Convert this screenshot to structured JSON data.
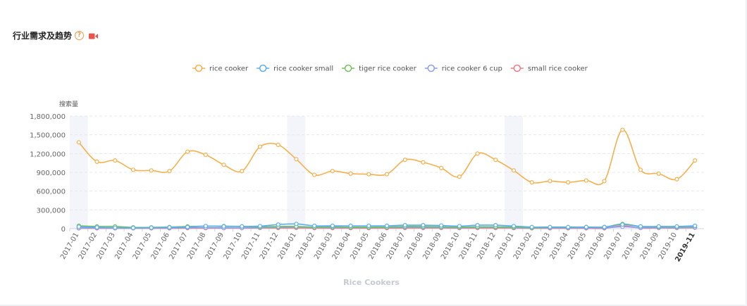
{
  "header": {
    "title": "行业需求及趋势",
    "help_icon": "question-circle-icon",
    "video_icon": "video-camera-icon",
    "help_color": "#f2994a",
    "video_color": "#e8534a"
  },
  "chart_data": {
    "type": "line",
    "title": "",
    "ylabel": "搜索量",
    "xlabel": "Rice Cookers",
    "ylim": [
      0,
      1800000
    ],
    "yticks": [
      "0",
      "300,000",
      "600,000",
      "900,000",
      "1,200,000",
      "1,500,000",
      "1,800,000"
    ],
    "ytick_values": [
      0,
      300000,
      600000,
      900000,
      1200000,
      1500000,
      1800000
    ],
    "grid": "horizontal dashed",
    "legend_position": "top-center",
    "highlighted_period_indices": [
      0,
      12,
      24
    ],
    "categories": [
      "2017-01",
      "2017-02",
      "2017-03",
      "2017-04",
      "2017-05",
      "2017-06",
      "2017-07",
      "2017-08",
      "2017-09",
      "2017-10",
      "2017-11",
      "2017-12",
      "2018-01",
      "2018-02",
      "2018-03",
      "2018-04",
      "2018-05",
      "2018-06",
      "2018-07",
      "2018-08",
      "2018-09",
      "2018-10",
      "2018-11",
      "2018-12",
      "2019-01",
      "2019-02",
      "2019-03",
      "2019-04",
      "2019-05",
      "2019-06",
      "2019-07",
      "2019-08",
      "2019-09",
      "2019-10",
      "2019-11"
    ],
    "series": [
      {
        "name": "rice cooker",
        "color": "#f5b04d",
        "values": [
          1380000,
          1070000,
          1090000,
          940000,
          930000,
          920000,
          1230000,
          1180000,
          1020000,
          920000,
          1310000,
          1340000,
          1110000,
          860000,
          920000,
          880000,
          870000,
          870000,
          1100000,
          1060000,
          970000,
          830000,
          1200000,
          1100000,
          930000,
          740000,
          760000,
          740000,
          770000,
          760000,
          1580000,
          940000,
          880000,
          790000,
          1090000
        ]
      },
      {
        "name": "rice cooker small",
        "color": "#5aaef2",
        "values": [
          30000,
          20000,
          15000,
          12000,
          15000,
          20000,
          25000,
          40000,
          35000,
          35000,
          40000,
          65000,
          75000,
          45000,
          45000,
          45000,
          45000,
          45000,
          55000,
          55000,
          50000,
          40000,
          55000,
          55000,
          40000,
          25000,
          25000,
          25000,
          25000,
          25000,
          65000,
          35000,
          35000,
          35000,
          45000
        ]
      },
      {
        "name": "tiger rice cooker",
        "color": "#72c45a",
        "values": [
          45000,
          35000,
          35000,
          20000,
          20000,
          25000,
          35000,
          40000,
          40000,
          35000,
          30000,
          35000,
          35000,
          25000,
          30000,
          25000,
          25000,
          25000,
          35000,
          35000,
          30000,
          25000,
          30000,
          30000,
          25000,
          15000,
          20000,
          20000,
          25000,
          25000,
          75000,
          35000,
          30000,
          30000,
          40000
        ]
      },
      {
        "name": "rice cooker 6 cup",
        "color": "#8c9ee6",
        "values": [
          10000,
          10000,
          8000,
          8000,
          10000,
          10000,
          15000,
          15000,
          12000,
          12000,
          15000,
          20000,
          25000,
          18000,
          18000,
          18000,
          18000,
          18000,
          20000,
          20000,
          18000,
          15000,
          20000,
          20000,
          15000,
          10000,
          12000,
          12000,
          12000,
          12000,
          30000,
          15000,
          15000,
          15000,
          20000
        ]
      },
      {
        "name": "small rice cooker",
        "color": "#ef7a86",
        "values": [
          5000,
          5000,
          5000,
          5000,
          5000,
          5000,
          8000,
          8000,
          8000,
          8000,
          10000,
          10000,
          12000,
          8000,
          8000,
          8000,
          8000,
          8000,
          10000,
          10000,
          10000,
          8000,
          10000,
          10000,
          8000,
          5000,
          5000,
          5000,
          5000,
          5000,
          45000,
          10000,
          10000,
          10000,
          15000
        ]
      }
    ]
  }
}
